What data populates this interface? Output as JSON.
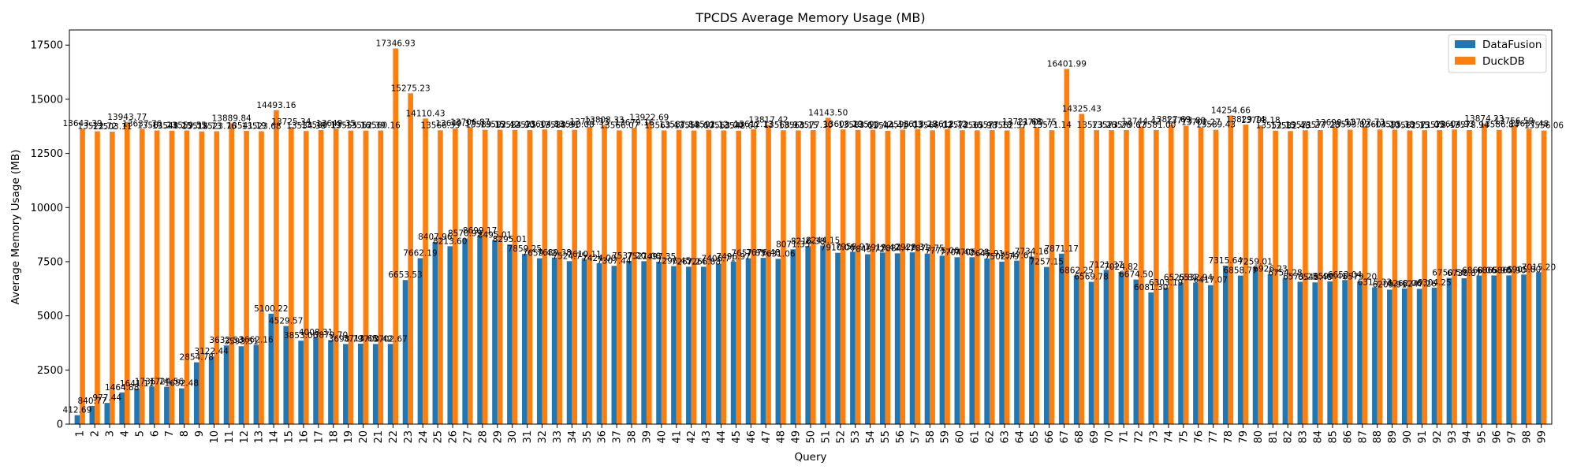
{
  "chart_data": {
    "type": "bar",
    "title": "TPCDS Average Memory Usage (MB)",
    "xlabel": "Query",
    "ylabel": "Average Memory Usage (MB)",
    "ylim": [
      0,
      18200
    ],
    "yticks": [
      0,
      2500,
      5000,
      7500,
      10000,
      12500,
      15000,
      17500
    ],
    "ytick_labels": [
      "0",
      "2500",
      "5000",
      "7500",
      "10000",
      "12500",
      "15000",
      "17500"
    ],
    "categories": [
      "1",
      "2",
      "3",
      "4",
      "5",
      "6",
      "7",
      "8",
      "9",
      "10",
      "11",
      "12",
      "13",
      "14",
      "15",
      "16",
      "17",
      "18",
      "19",
      "20",
      "21",
      "22",
      "23",
      "24",
      "25",
      "26",
      "27",
      "28",
      "29",
      "30",
      "31",
      "32",
      "33",
      "34",
      "35",
      "36",
      "37",
      "38",
      "39",
      "40",
      "41",
      "42",
      "43",
      "44",
      "45",
      "46",
      "47",
      "48",
      "49",
      "50",
      "51",
      "52",
      "53",
      "54",
      "55",
      "56",
      "57",
      "58",
      "59",
      "60",
      "61",
      "62",
      "63",
      "64",
      "65",
      "66",
      "67",
      "68",
      "69",
      "70",
      "71",
      "72",
      "73",
      "74",
      "75",
      "76",
      "77",
      "78",
      "79",
      "80",
      "81",
      "82",
      "83",
      "84",
      "85",
      "86",
      "87",
      "88",
      "89",
      "90",
      "91",
      "92",
      "93",
      "94",
      "95",
      "96",
      "97",
      "98",
      "99"
    ],
    "legend_position": "top-right",
    "grid": false,
    "series": [
      {
        "name": "DataFusion",
        "color": "#1f77b4",
        "values": [
          412.69,
          840.77,
          977.44,
          1464.88,
          1641.11,
          1735.74,
          1724.56,
          1652.48,
          2854.78,
          3122.44,
          3632.53,
          3593.51,
          3662.16,
          5100.22,
          4529.57,
          3853.06,
          4008.31,
          3879.7,
          3698.79,
          3713.65,
          3700.42,
          3702.67,
          6653.53,
          7662.19,
          8407.96,
          8213.6,
          8570.99,
          8699.17,
          8495.01,
          8295.01,
          7859.25,
          7659.42,
          7689.38,
          7524.75,
          7610.11,
          7424.0,
          7307.44,
          7537.2,
          7521.08,
          7497.35,
          7296.45,
          7267.24,
          7266.88,
          7406.71,
          7496.97,
          7657.85,
          7676.48,
          7631.06,
          8071.35,
          8216.38,
          8244.15,
          7910.06,
          7958.91,
          7843.72,
          7919.42,
          7884.47,
          7929.31,
          7873.75,
          7775.06,
          7704.42,
          7705.28,
          7645.91,
          7502.79,
          7547.61,
          7734.16,
          7257.15,
          7871.17,
          6862.25,
          6569.78,
          7121.37,
          7024.82,
          6674.5,
          6081.3,
          6303.19,
          6525.81,
          6532.94,
          6417.07,
          7315.64,
          6858.77,
          7259.01,
          6926.23,
          6754.28,
          6573.23,
          6543.48,
          6590.41,
          6653.04,
          6579.2,
          6315.33,
          6209.91,
          6262.06,
          6247.26,
          6304.25,
          6750.5,
          6736.87,
          6860.06,
          6865.9,
          6865.9,
          6905.8,
          7015.2
        ]
      },
      {
        "name": "DuckDB",
        "color": "#ff7f0e",
        "values": [
          13643.39,
          13522.72,
          13503.11,
          13943.77,
          13637.76,
          13561.23,
          13548.25,
          13559.55,
          13516.73,
          13523.76,
          13889.84,
          13541.19,
          13523.68,
          14493.16,
          13725.34,
          13534.38,
          13580.19,
          13649.35,
          13555.16,
          13552.39,
          13560.16,
          17346.93,
          15275.23,
          14110.43,
          13566.35,
          13649.37,
          13706.87,
          13589.15,
          13592.42,
          13584.9,
          13575.37,
          13604.83,
          13580.91,
          13590.08,
          13721.33,
          13808.33,
          13566.07,
          13679.16,
          13922.69,
          13563.47,
          13587.84,
          13558.6,
          13592.12,
          13563.0,
          13548.6,
          13612.13,
          13817.42,
          13568.97,
          13563.15,
          13577.3,
          14143.5,
          13608.29,
          13583.61,
          13590.42,
          13544.41,
          13596.03,
          13613.28,
          13566.02,
          13612.72,
          13572.36,
          13565.98,
          13577.18,
          13562.57,
          13721.68,
          13700.75,
          13571.14,
          16401.99,
          14325.43,
          13573.26,
          13573.26,
          13579.67,
          13744.42,
          13581.0,
          13827.69,
          13773.89,
          13702.27,
          13589.43,
          14254.66,
          13829.74,
          13798.18,
          13552.15,
          13532.46,
          13571.27,
          13577.28,
          13690.51,
          13593.82,
          13702.73,
          13604.2,
          13595.38,
          13562.15,
          13571.05,
          13578.47,
          13604.93,
          13578.94,
          13874.23,
          13586.84,
          13756.59,
          13637.48,
          13556.06
        ]
      }
    ]
  }
}
